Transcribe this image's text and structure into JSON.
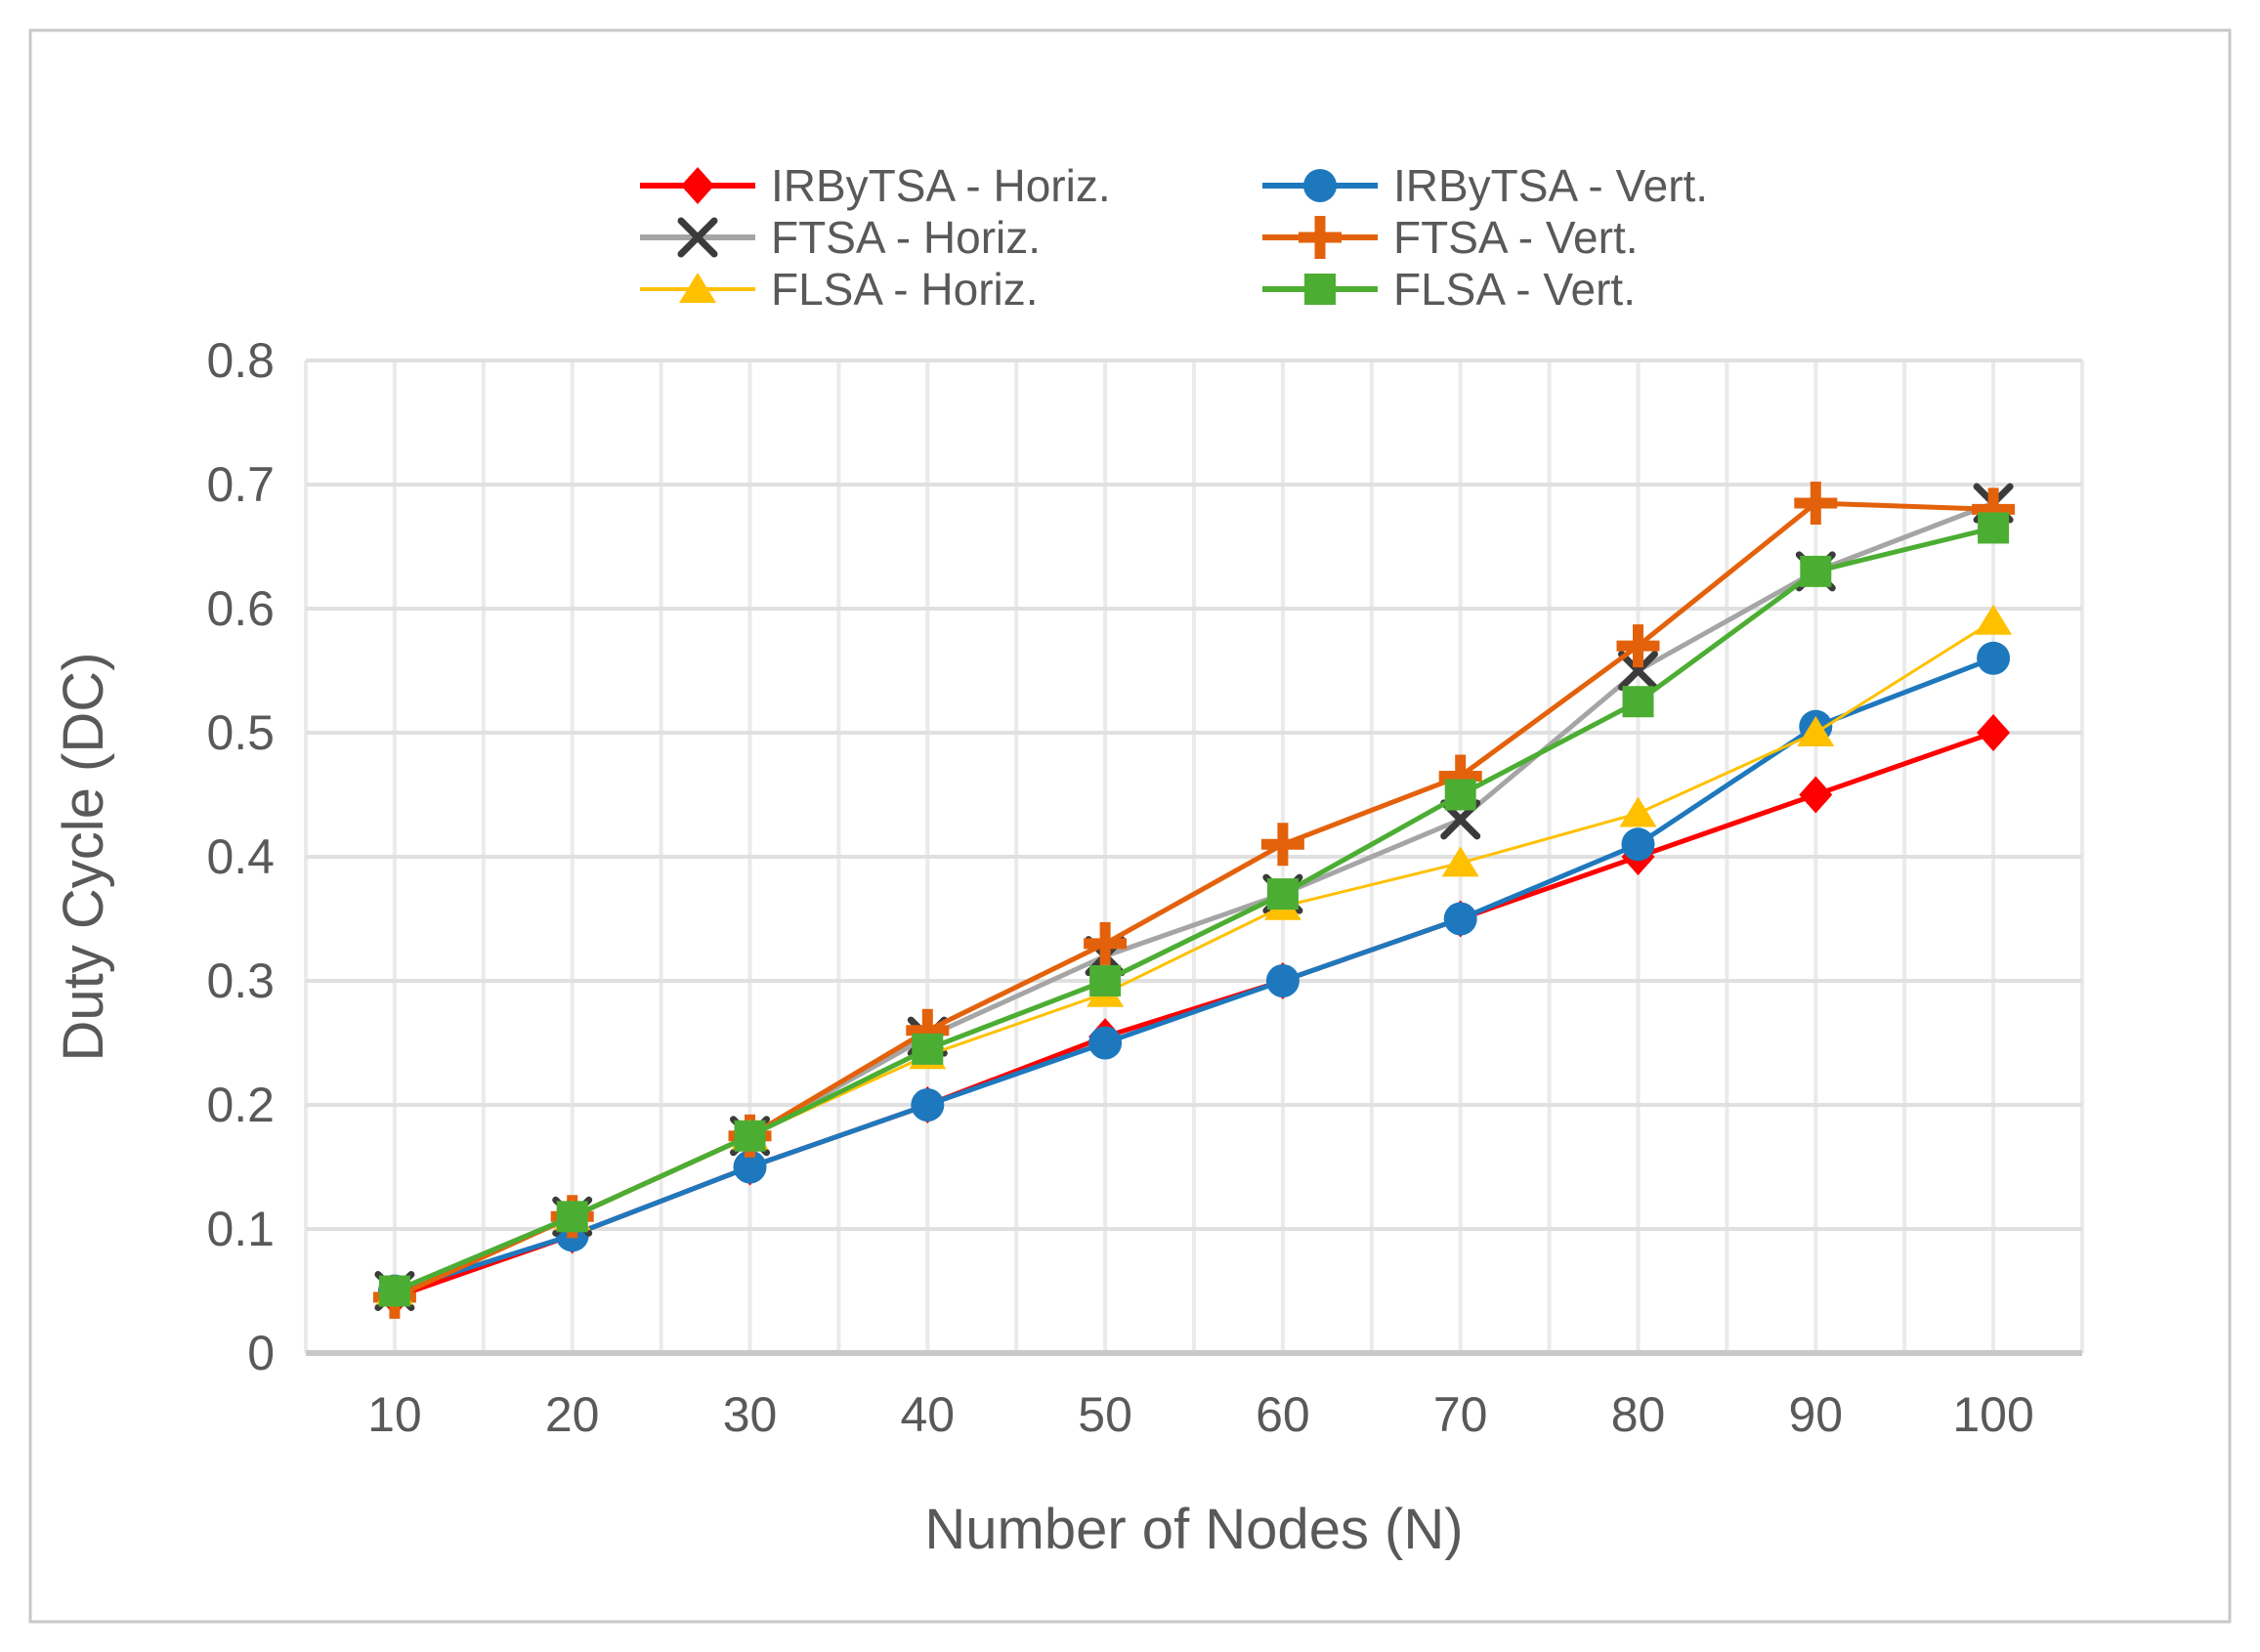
{
  "figure": {
    "background": "#FFFFFF",
    "border_color": "#C9C9C9"
  },
  "colors": {
    "irbytsa_horiz": "#FF0000",
    "irbytsa_vert": "#1E78BD",
    "ftsa_horiz": "#A5A5A5",
    "ftsa_vert": "#E4610B",
    "flsa_horiz": "#FFC000",
    "flsa_vert": "#4CAD33",
    "grid_h": "#E0E0E0",
    "grid_v": "#EAEAEA",
    "axis_line": "#C8C8C8",
    "text": "#595959"
  },
  "legend": {
    "items": [
      {
        "label": "IRByTSA - Horiz.",
        "color": "#FF0000",
        "marker": "diamond"
      },
      {
        "label": "IRByTSA - Vert.",
        "color": "#1E78BD",
        "marker": "circle"
      },
      {
        "label": "FTSA - Horiz.",
        "color": "#A5A5A5",
        "marker": "x"
      },
      {
        "label": "FTSA - Vert.",
        "color": "#E4610B",
        "marker": "plus"
      },
      {
        "label": "FLSA - Horiz.",
        "color": "#FFC000",
        "marker": "triangle"
      },
      {
        "label": "FLSA - Vert.",
        "color": "#4CAD33",
        "marker": "square"
      }
    ]
  },
  "chart_data": {
    "type": "line",
    "title": "",
    "xlabel": "Number of Nodes (N)",
    "ylabel": "Duty Cycle (DC)",
    "categories": [
      10,
      20,
      30,
      40,
      50,
      60,
      70,
      80,
      90,
      100
    ],
    "xlim": [
      5,
      105
    ],
    "ylim": [
      0,
      0.8
    ],
    "x_grid_step": 5,
    "grid": true,
    "legend_position": "top-center",
    "y_ticks": [
      {
        "value": 0,
        "label": "0"
      },
      {
        "value": 0.1,
        "label": "0.1"
      },
      {
        "value": 0.2,
        "label": "0.2"
      },
      {
        "value": 0.3,
        "label": "0.3"
      },
      {
        "value": 0.4,
        "label": "0.4"
      },
      {
        "value": 0.5,
        "label": "0.5"
      },
      {
        "value": 0.6,
        "label": "0.6"
      },
      {
        "value": 0.7,
        "label": "0.7"
      },
      {
        "value": 0.8,
        "label": "0.8"
      }
    ],
    "series": [
      {
        "name": "IRByTSA - Horiz.",
        "color": "#FF0000",
        "marker": "diamond",
        "line_width": 5,
        "values": [
          0.045,
          0.095,
          0.15,
          0.2,
          0.255,
          0.3,
          0.35,
          0.4,
          0.45,
          0.5
        ]
      },
      {
        "name": "IRByTSA - Vert.",
        "color": "#1E78BD",
        "marker": "circle",
        "line_width": 5,
        "values": [
          0.05,
          0.095,
          0.15,
          0.2,
          0.25,
          0.3,
          0.35,
          0.41,
          0.505,
          0.56
        ]
      },
      {
        "name": "FTSA - Horiz.",
        "color": "#A5A5A5",
        "marker": "x",
        "line_width": 5,
        "values": [
          0.05,
          0.11,
          0.175,
          0.255,
          0.32,
          0.37,
          0.43,
          0.55,
          0.63,
          0.685
        ]
      },
      {
        "name": "FTSA - Vert.",
        "color": "#E4610B",
        "marker": "plus",
        "line_width": 5,
        "values": [
          0.045,
          0.11,
          0.175,
          0.26,
          0.33,
          0.41,
          0.465,
          0.57,
          0.685,
          0.68
        ]
      },
      {
        "name": "FLSA - Horiz.",
        "color": "#FFC000",
        "marker": "triangle",
        "line_width": 3,
        "values": [
          0.05,
          0.11,
          0.175,
          0.24,
          0.29,
          0.36,
          0.395,
          0.435,
          0.5,
          0.59
        ]
      },
      {
        "name": "FLSA - Vert.",
        "color": "#4CAD33",
        "marker": "square",
        "line_width": 5,
        "values": [
          0.05,
          0.11,
          0.175,
          0.245,
          0.3,
          0.37,
          0.45,
          0.525,
          0.63,
          0.665
        ]
      }
    ]
  }
}
